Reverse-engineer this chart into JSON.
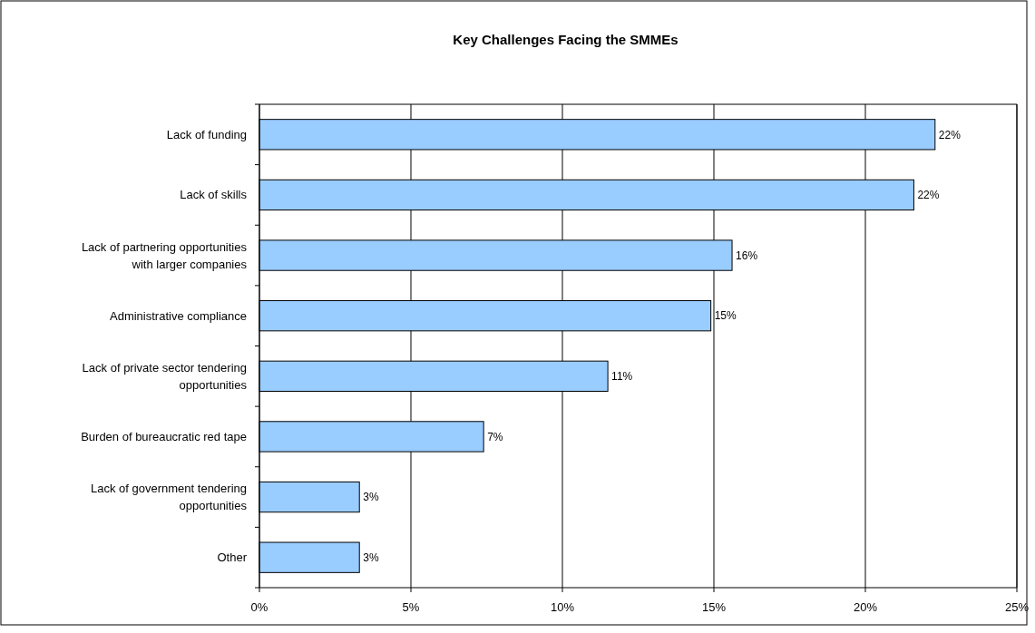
{
  "chart_data": {
    "type": "bar",
    "orientation": "horizontal",
    "title": "Key Challenges Facing the SMMEs",
    "categories": [
      "Lack of funding",
      "Lack of skills",
      "Lack of partnering opportunities with larger companies",
      "Administrative compliance",
      "Lack of private sector tendering opportunities",
      "Burden of bureaucratic red tape",
      "Lack of government tendering opportunities",
      "Other"
    ],
    "values": [
      22.3,
      21.6,
      15.6,
      14.9,
      11.5,
      7.4,
      3.3,
      3.3
    ],
    "value_labels": [
      "22%",
      "22%",
      "16%",
      "15%",
      "11%",
      "7%",
      "3%",
      "3%"
    ],
    "color": "#99ccff",
    "xlim": [
      0,
      25
    ],
    "xticks": [
      {
        "value": 0,
        "label": "0%"
      },
      {
        "value": 5,
        "label": "5%"
      },
      {
        "value": 10,
        "label": "10%"
      },
      {
        "value": 15,
        "label": "15%"
      },
      {
        "value": 20,
        "label": "20%"
      },
      {
        "value": 25,
        "label": "25%"
      }
    ],
    "grid": "x"
  }
}
